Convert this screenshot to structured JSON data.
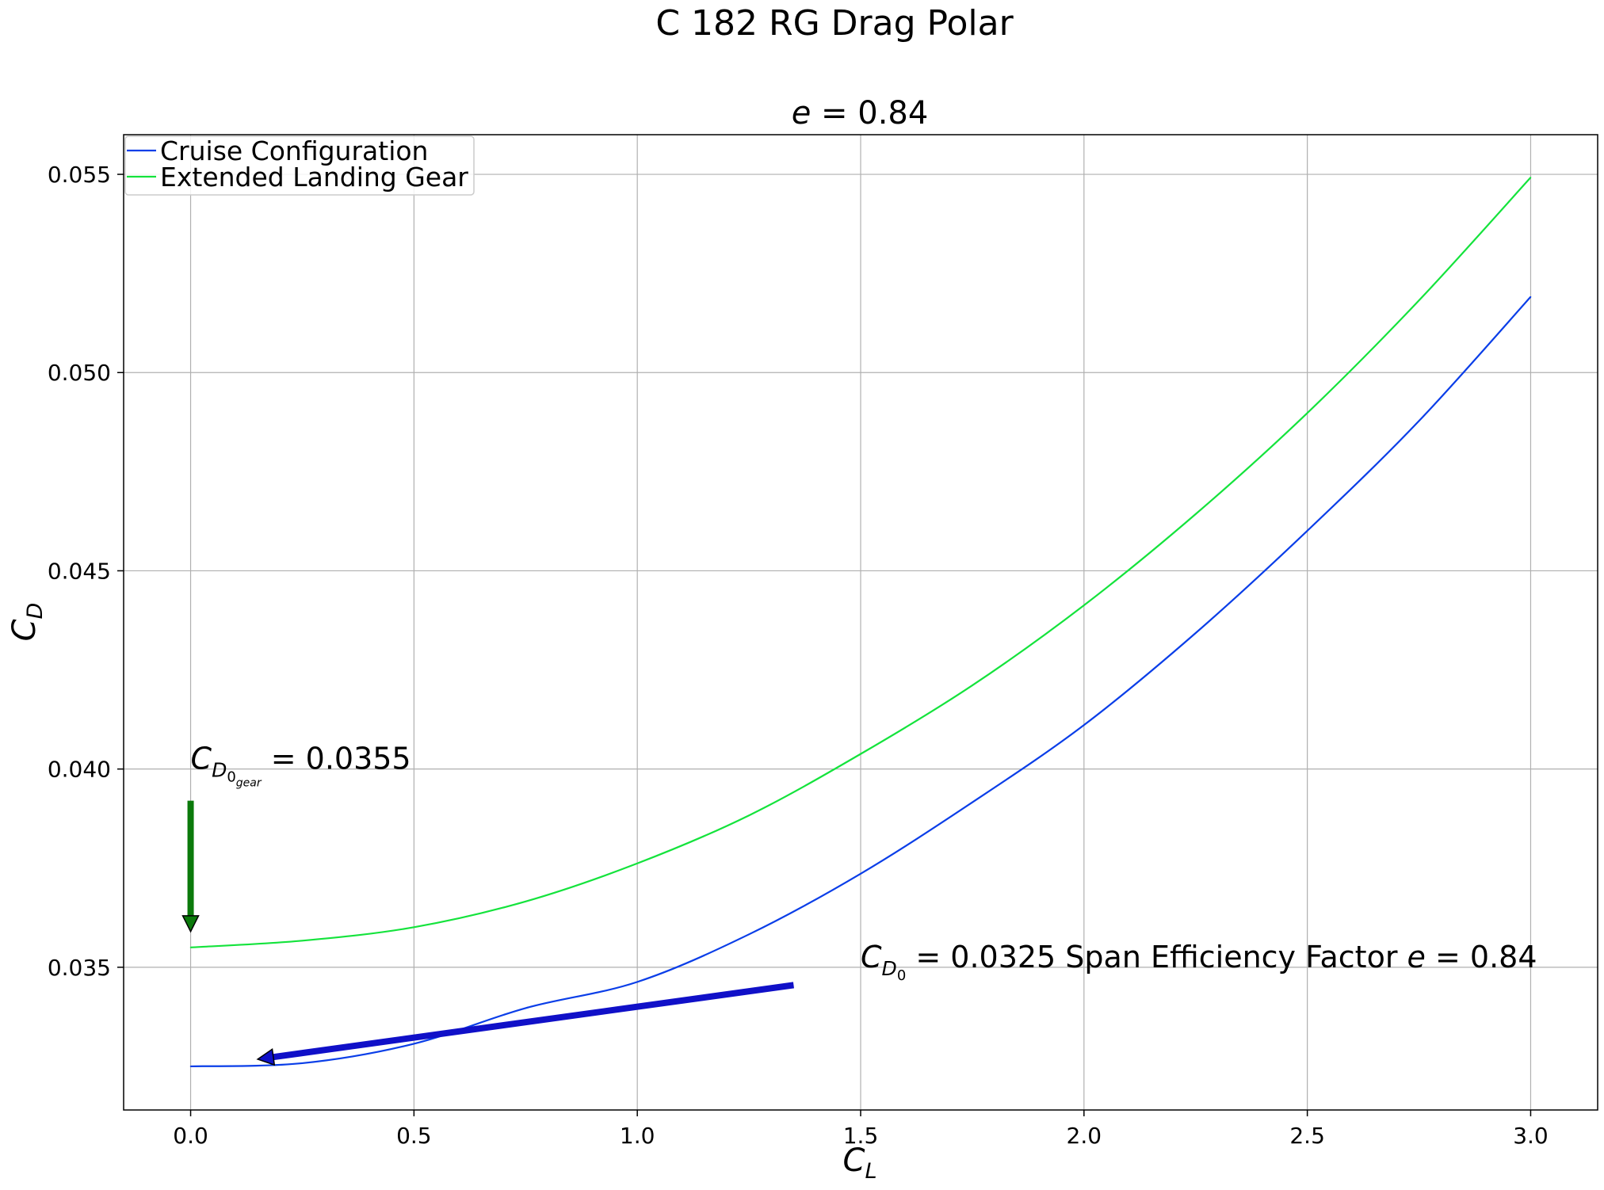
{
  "figure": {
    "suptitle": "C 182 RG Drag Polar",
    "title_var": "e",
    "title_rest": " = 0.84"
  },
  "chart_data": {
    "type": "line",
    "xlabel": {
      "main": "C",
      "sub": "L"
    },
    "ylabel": {
      "main": "C",
      "sub": "D"
    },
    "xlim": [
      -0.15,
      3.15
    ],
    "ylim": [
      0.0314,
      0.056
    ],
    "xticks": [
      0.0,
      0.5,
      1.0,
      1.5,
      2.0,
      2.5,
      3.0
    ],
    "xtick_labels": [
      "0.0",
      "0.5",
      "1.0",
      "1.5",
      "2.0",
      "2.5",
      "3.0"
    ],
    "yticks": [
      0.035,
      0.04,
      0.045,
      0.05,
      0.055
    ],
    "ytick_labels": [
      "0.035",
      "0.040",
      "0.045",
      "0.050",
      "0.055"
    ],
    "grid": true,
    "legend_position": "top-left",
    "series": [
      {
        "name": "Cruise Configuration",
        "color": "#0a3ee8",
        "x": [
          0.0,
          0.25,
          0.5,
          0.75,
          1.0,
          1.25,
          1.5,
          1.75,
          2.0,
          2.25,
          2.5,
          2.75,
          3.0
        ],
        "y": [
          0.0325,
          0.03258,
          0.03307,
          0.03397,
          0.03463,
          0.03583,
          0.03736,
          0.03916,
          0.04111,
          0.04343,
          0.04601,
          0.04878,
          0.05191
        ]
      },
      {
        "name": "Extended Landing Gear",
        "color": "#14e33c",
        "x": [
          0.0,
          0.25,
          0.5,
          0.75,
          1.0,
          1.25,
          1.5,
          1.75,
          2.0,
          2.25,
          2.5,
          2.75,
          3.0
        ],
        "y": [
          0.0355,
          0.03567,
          0.03601,
          0.03666,
          0.03762,
          0.03883,
          0.04038,
          0.04211,
          0.04413,
          0.04643,
          0.04898,
          0.05182,
          0.05492
        ]
      }
    ],
    "annotations": {
      "gear": {
        "c": "C",
        "d": "D",
        "zero": "0",
        "gear": "gear",
        "text": " = 0.0355",
        "x": 0.0,
        "y": 0.04,
        "arrow_from": [
          0.0,
          0.0392
        ],
        "arrow_to": [
          0.0,
          0.0359
        ],
        "arrow_color": "#0b7a0b"
      },
      "cruise": {
        "c": "C",
        "d": "D",
        "zero": "0",
        "text": " = 0.0325  Span Efficiency Factor ",
        "evar": "e",
        "etext": " = 0.84",
        "x": 1.5,
        "y": 0.035,
        "arrow_from": [
          1.35,
          0.03455
        ],
        "arrow_to": [
          0.15,
          0.03268
        ],
        "arrow_color": "#1010c8"
      }
    }
  }
}
